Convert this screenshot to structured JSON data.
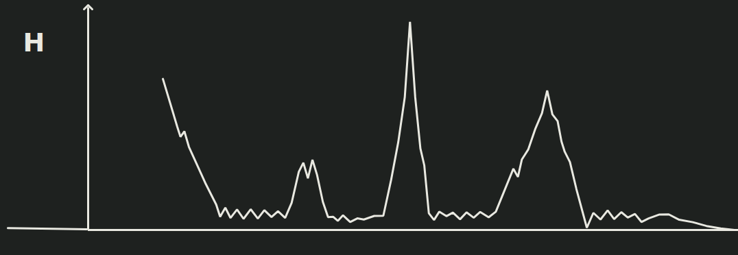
{
  "chart_data": {
    "type": "line",
    "y_label": "H",
    "color": "#e9e9e1",
    "tick_labels": false,
    "xlim": [
      0,
      100
    ],
    "ylim": [
      0,
      100
    ],
    "xticks": [],
    "yticks": [],
    "x": [
      11.5,
      13.7,
      14.2,
      14.8,
      15.5,
      18.1,
      19.7,
      20.3,
      21.1,
      21.9,
      22.9,
      23.9,
      25.0,
      26.1,
      27.1,
      28.2,
      29.2,
      30.3,
      31.3,
      32.4,
      33.1,
      33.8,
      34.5,
      35.2,
      36.1,
      36.9,
      37.7,
      38.4,
      39.2,
      40.3,
      41.4,
      42.4,
      44.0,
      45.4,
      46.6,
      47.7,
      48.7,
      49.5,
      50.3,
      51.1,
      51.7,
      52.4,
      53.2,
      54.0,
      55.1,
      56.1,
      57.2,
      58.2,
      59.3,
      60.3,
      61.6,
      62.7,
      64.0,
      65.4,
      66.1,
      66.7,
      67.7,
      68.8,
      69.8,
      70.6,
      71.4,
      72.2,
      72.8,
      73.3,
      74.1,
      75.1,
      76.7,
      77.7,
      78.8,
      79.9,
      80.9,
      82.0,
      83.0,
      84.1,
      85.1,
      86.2,
      87.8,
      89.3,
      90.9,
      93.0,
      95.1,
      97.3,
      99.4
    ],
    "values": [
      67.8,
      46.4,
      41.8,
      44.3,
      37.3,
      20.6,
      11.4,
      5.9,
      10,
      5.4,
      9.2,
      5,
      9.3,
      5.1,
      8.9,
      5.8,
      8.4,
      5.4,
      12.2,
      26.1,
      30.2,
      23.2,
      31.5,
      24.8,
      12.6,
      5.8,
      5.9,
      4.1,
      6.6,
      3.6,
      5.2,
      4.7,
      6.3,
      6.4,
      22.5,
      39.5,
      59.6,
      93.4,
      59.7,
      36.6,
      29,
      7.5,
      4.5,
      8.2,
      6.2,
      7.8,
      4.8,
      7.9,
      5.5,
      8.1,
      5.7,
      8.2,
      17.5,
      27.5,
      23.8,
      31.6,
      36.2,
      45.6,
      52.4,
      62.6,
      51.9,
      48.9,
      39.7,
      35.1,
      30.5,
      18.3,
      1,
      7.7,
      4.7,
      8.8,
      4.9,
      8,
      5.6,
      7.2,
      3.6,
      5.2,
      6.9,
      7,
      4.6,
      3.5,
      1.8,
      0.7,
      0
    ]
  }
}
